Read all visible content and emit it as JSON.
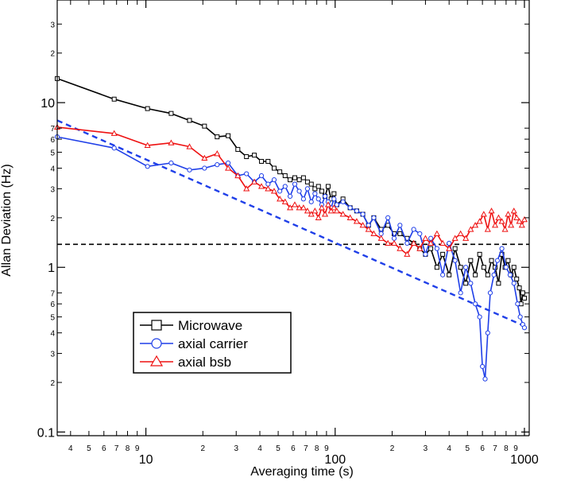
{
  "chart_data": {
    "type": "line",
    "title": "",
    "xlabel": "Averaging time (s)",
    "ylabel": "Allan Deviation (Hz)",
    "xscale": "log",
    "yscale": "log",
    "xlim": [
      3.4,
      1060
    ],
    "ylim": [
      0.095,
      42
    ],
    "grid": false,
    "legend_position": "bottom-left",
    "x_major_ticks": [
      10,
      100,
      1000
    ],
    "x_major_labels": [
      "10",
      "100",
      "1000"
    ],
    "x_minor_ticks": [
      4,
      5,
      6,
      7,
      8,
      9,
      20,
      30,
      40,
      50,
      60,
      70,
      80,
      90,
      200,
      300,
      400,
      500,
      600,
      700,
      800,
      900
    ],
    "x_minor_labels": [
      "4",
      "5",
      "6",
      "7",
      "8",
      "9",
      "2",
      "3",
      "4",
      "5",
      "6",
      "7",
      "8",
      "9",
      "2",
      "3",
      "4",
      "5",
      "6",
      "7",
      "8",
      "9"
    ],
    "y_major_ticks": [
      0.1,
      1,
      10
    ],
    "y_major_labels": [
      "0.1",
      "1",
      "10"
    ],
    "y_minor_ticks": [
      0.2,
      0.3,
      0.4,
      0.5,
      0.6,
      0.7,
      2,
      3,
      4,
      5,
      6,
      7,
      20,
      30
    ],
    "y_minor_labels": [
      "2",
      "3",
      "4",
      "5",
      "6",
      "7",
      "2",
      "3",
      "4",
      "5",
      "6",
      "7",
      "2",
      "3"
    ],
    "series": [
      {
        "name": "Microwave",
        "color": "#000000",
        "marker": "square",
        "x": [
          3.4,
          6.8,
          10.2,
          13.6,
          17,
          20.4,
          23.8,
          27.2,
          30.6,
          34,
          37.4,
          40.8,
          44.2,
          47.6,
          51,
          54.4,
          57.8,
          61.2,
          64.6,
          68,
          71.4,
          74.8,
          78.2,
          81.6,
          85,
          88.4,
          91.8,
          95.2,
          98.6,
          102,
          110,
          120,
          130,
          140,
          150,
          160,
          175,
          190,
          205,
          220,
          240,
          260,
          280,
          300,
          320,
          345,
          370,
          400,
          430,
          460,
          490,
          520,
          550,
          580,
          610,
          640,
          670,
          700,
          730,
          760,
          790,
          820,
          850,
          880,
          910,
          940,
          960,
          980,
          1000
        ],
        "y": [
          14,
          10.5,
          9.2,
          8.6,
          7.8,
          7.2,
          6.2,
          6.3,
          5.2,
          4.7,
          4.8,
          4.4,
          4.4,
          4.0,
          3.8,
          3.6,
          3.4,
          3.5,
          3.4,
          3.5,
          3.3,
          3.2,
          3.0,
          3.1,
          2.9,
          2.7,
          3.1,
          2.6,
          2.8,
          2.4,
          2.6,
          2.3,
          2.2,
          2.1,
          1.8,
          2.0,
          1.7,
          1.8,
          1.6,
          1.6,
          1.5,
          1.4,
          1.3,
          1.2,
          1.3,
          1.0,
          1.2,
          0.9,
          1.3,
          1.0,
          0.8,
          1.1,
          0.9,
          1.2,
          1.0,
          0.9,
          1.1,
          1.0,
          0.8,
          1.2,
          1.0,
          1.1,
          0.9,
          1.0,
          0.85,
          0.75,
          0.6,
          0.7,
          0.65
        ]
      },
      {
        "name": "axial carrier",
        "color": "#1f3fe8",
        "marker": "circle",
        "x": [
          3.4,
          6.8,
          10.2,
          13.6,
          17,
          20.4,
          23.8,
          27.2,
          30.6,
          34,
          37.4,
          40.8,
          44.2,
          47.6,
          51,
          54.4,
          57.8,
          61.2,
          64.6,
          68,
          71.4,
          74.8,
          78.2,
          81.6,
          85,
          88.4,
          91.8,
          95.2,
          98.6,
          102,
          110,
          120,
          130,
          140,
          150,
          160,
          175,
          190,
          205,
          220,
          240,
          260,
          280,
          300,
          320,
          345,
          370,
          400,
          430,
          460,
          490,
          520,
          550,
          580,
          600,
          620,
          640,
          660,
          690,
          720,
          760,
          800,
          840,
          880,
          920,
          950,
          980,
          1000
        ],
        "y": [
          6.2,
          5.3,
          4.1,
          4.3,
          3.9,
          4.0,
          4.2,
          4.3,
          3.6,
          3.7,
          3.3,
          3.6,
          3.2,
          3.4,
          2.9,
          3.1,
          2.7,
          3.2,
          2.9,
          2.6,
          3.0,
          2.5,
          2.8,
          2.6,
          2.4,
          2.7,
          2.5,
          2.3,
          2.6,
          2.4,
          2.5,
          2.3,
          2.2,
          2.1,
          1.8,
          2.0,
          1.6,
          2.0,
          1.5,
          1.8,
          1.4,
          1.7,
          1.6,
          1.2,
          1.5,
          1.3,
          0.9,
          1.4,
          1.1,
          0.7,
          1.0,
          0.8,
          0.6,
          0.5,
          0.25,
          0.21,
          0.4,
          0.7,
          0.9,
          1.1,
          1.3,
          1.0,
          0.9,
          0.8,
          0.6,
          0.5,
          0.45,
          0.43
        ]
      },
      {
        "name": "axial bsb",
        "color": "#ee1111",
        "marker": "triangle",
        "x": [
          3.4,
          6.8,
          10.2,
          13.6,
          17,
          20.4,
          23.8,
          27.2,
          30.6,
          34,
          37.4,
          40.8,
          44.2,
          47.6,
          51,
          54.4,
          57.8,
          61.2,
          64.6,
          68,
          71.4,
          74.8,
          78.2,
          81.6,
          85,
          88.4,
          91.8,
          95.2,
          98.6,
          102,
          110,
          120,
          130,
          140,
          150,
          160,
          175,
          190,
          205,
          220,
          240,
          260,
          280,
          300,
          320,
          345,
          370,
          400,
          430,
          460,
          490,
          520,
          550,
          580,
          610,
          640,
          670,
          700,
          730,
          760,
          790,
          820,
          850,
          880,
          910,
          940,
          970,
          1000
        ],
        "y": [
          7.1,
          6.5,
          5.5,
          5.7,
          5.4,
          4.6,
          4.9,
          4.0,
          3.6,
          3.0,
          3.3,
          3.1,
          3.0,
          2.9,
          2.6,
          2.5,
          2.3,
          2.4,
          2.3,
          2.3,
          2.2,
          2.1,
          2.2,
          2.0,
          2.3,
          2.1,
          2.4,
          2.2,
          2.3,
          2.2,
          2.1,
          2.0,
          1.9,
          1.8,
          1.7,
          1.6,
          1.5,
          1.4,
          1.4,
          1.3,
          1.2,
          1.4,
          1.3,
          1.5,
          1.4,
          1.6,
          1.4,
          1.3,
          1.5,
          1.6,
          1.5,
          1.7,
          1.8,
          1.9,
          2.1,
          1.7,
          2.2,
          1.8,
          2.0,
          1.9,
          1.7,
          2.1,
          1.8,
          2.2,
          2.0,
          1.9,
          1.8,
          1.95
        ]
      }
    ],
    "reference_lines": [
      {
        "style": "dashed",
        "color": "#000000",
        "x": [
          3.4,
          1060
        ],
        "y": [
          1.38,
          1.38
        ]
      },
      {
        "style": "dashed",
        "color": "#1f3fe8",
        "x": [
          3.4,
          1000
        ],
        "y": [
          7.8,
          0.44
        ]
      }
    ]
  }
}
